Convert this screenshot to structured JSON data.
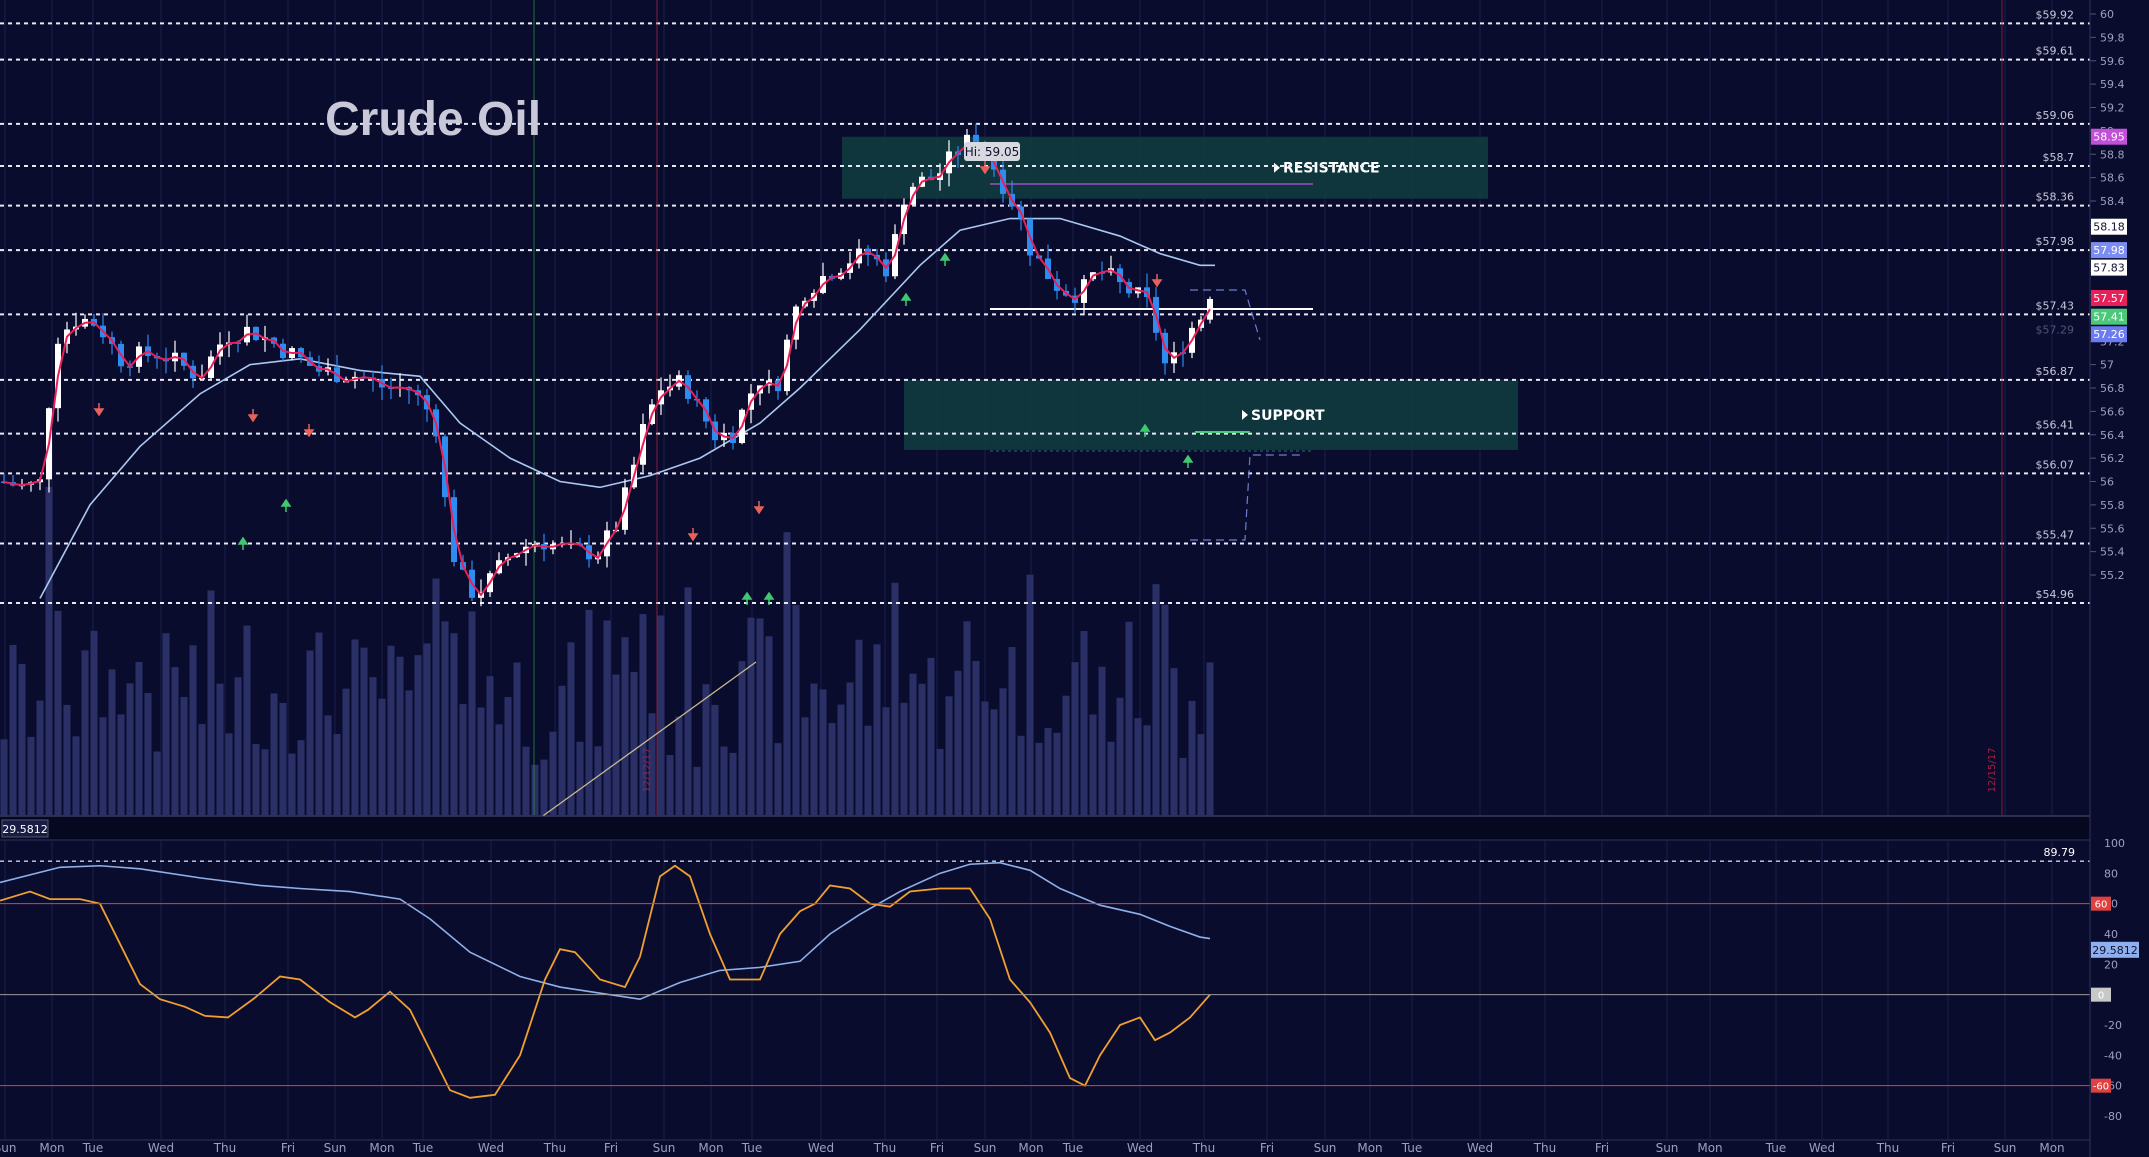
{
  "chart_data": [
    {
      "type": "candlestick",
      "title": "Crude Oil",
      "y_axis_ticks": [
        "60",
        "59.8",
        "59.6",
        "59.4",
        "59.2",
        "59",
        "58.8",
        "58.6",
        "58.4",
        "58.2",
        "58",
        "57.8",
        "57.6",
        "57.4",
        "57.2",
        "57",
        "56.8",
        "56.6",
        "56.4",
        "56.2",
        "56",
        "55.8",
        "55.6",
        "55.4",
        "55.2"
      ],
      "ylim": [
        55.0,
        60.0
      ],
      "level_lines": [
        {
          "label": "$59.92",
          "value": 59.92
        },
        {
          "label": "$59.61",
          "value": 59.61
        },
        {
          "label": "$59.06",
          "value": 59.06
        },
        {
          "label": "$58.7",
          "value": 58.7
        },
        {
          "label": "$58.36",
          "value": 58.36
        },
        {
          "label": "$57.98",
          "value": 57.98
        },
        {
          "label": "$57.43",
          "value": 57.43
        },
        {
          "label": "$56.87",
          "value": 56.87
        },
        {
          "label": "$56.41",
          "value": 56.41
        },
        {
          "label": "$56.07",
          "value": 56.07
        },
        {
          "label": "$55.47",
          "value": 55.47
        },
        {
          "label": "$54.96",
          "value": 54.96
        }
      ],
      "faint_level": {
        "label": "$57.29",
        "value": 57.29
      },
      "price_badges": [
        {
          "label": "58.95",
          "value": 58.95,
          "color": "#c050d8"
        },
        {
          "label": "58.18",
          "value": 58.18,
          "color": "#ffffff"
        },
        {
          "label": "57.98",
          "value": 57.98,
          "color": "#7c8cf0"
        },
        {
          "label": "57.83",
          "value": 57.83,
          "color": "#ffffff"
        },
        {
          "label": "57.57",
          "value": 57.57,
          "color": "#e8205a"
        },
        {
          "label": "57.41",
          "value": 57.41,
          "color": "#4cc87a"
        },
        {
          "label": "57.26",
          "value": 57.26,
          "color": "#6c7cf0"
        }
      ],
      "hi_label": "Hi: 59.05",
      "zones": [
        {
          "label": "RESISTANCE",
          "from": 58.42,
          "to": 58.95
        },
        {
          "label": "SUPPORT",
          "from": 56.27,
          "to": 56.87
        }
      ],
      "colors": {
        "background": "#0a0c2e",
        "bull": "#ffffff",
        "bear": "#2d8cf0",
        "ma_fast": "#e8205a",
        "ma_slow": "#aac8f0",
        "volume": "#2a2f66",
        "zone": "#0f3a3f"
      }
    },
    {
      "type": "line",
      "name": "oscillator",
      "readout": "29.5812",
      "top_value_label": "89.79",
      "y_axis_ticks": [
        "100",
        "80",
        "60",
        "40",
        "20",
        "0",
        "-20",
        "-40",
        "-60",
        "-80"
      ],
      "ylim": [
        -90,
        100
      ],
      "reference_lines": [
        {
          "label": "60",
          "value": 60,
          "color": "#e04040"
        },
        {
          "label": "0",
          "value": 0,
          "color": "#9a9a9a"
        },
        {
          "label": "-60",
          "value": -60,
          "color": "#e04040"
        }
      ],
      "badge": {
        "label": "29.5812",
        "value": 29.58,
        "color": "#8fb0f0"
      },
      "colors": {
        "fast": "#f0a030",
        "slow": "#8fb0e8"
      }
    }
  ],
  "time_axis": [
    "Sun",
    "Mon",
    "Tue",
    "Wed",
    "Thu",
    "Fri",
    "Sun",
    "Mon",
    "Tue",
    "Wed",
    "Thu",
    "Fri",
    "Sun",
    "Mon",
    "Tue",
    "Wed",
    "Thu",
    "Fri",
    "Sun",
    "Mon",
    "Tue",
    "Wed",
    "Thu",
    "Fri",
    "Sun",
    "Mon",
    "Tue",
    "Wed",
    "Thu",
    "Fri",
    "Sun",
    "Mon",
    "Tue",
    "Wed",
    "Thu",
    "Fri",
    "Sun",
    "Mon"
  ],
  "date_markers": [
    "12/12/17",
    "12/15/17"
  ]
}
